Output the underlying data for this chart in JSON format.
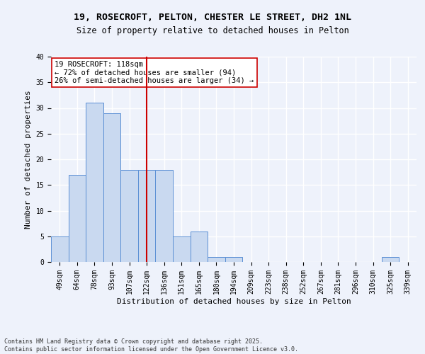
{
  "title_line1": "19, ROSECROFT, PELTON, CHESTER LE STREET, DH2 1NL",
  "title_line2": "Size of property relative to detached houses in Pelton",
  "xlabel": "Distribution of detached houses by size in Pelton",
  "ylabel": "Number of detached properties",
  "categories": [
    "49sqm",
    "64sqm",
    "78sqm",
    "93sqm",
    "107sqm",
    "122sqm",
    "136sqm",
    "151sqm",
    "165sqm",
    "180sqm",
    "194sqm",
    "209sqm",
    "223sqm",
    "238sqm",
    "252sqm",
    "267sqm",
    "281sqm",
    "296sqm",
    "310sqm",
    "325sqm",
    "339sqm"
  ],
  "values": [
    5,
    17,
    31,
    29,
    18,
    18,
    18,
    5,
    6,
    1,
    1,
    0,
    0,
    0,
    0,
    0,
    0,
    0,
    0,
    1,
    0
  ],
  "bar_color": "#c9d9f0",
  "bar_edge_color": "#5b8fd4",
  "vline_x": 5,
  "vline_color": "#cc0000",
  "annotation_text": "19 ROSECROFT: 118sqm\n← 72% of detached houses are smaller (94)\n26% of semi-detached houses are larger (34) →",
  "annotation_fontsize": 7.5,
  "ylim": [
    0,
    40
  ],
  "yticks": [
    0,
    5,
    10,
    15,
    20,
    25,
    30,
    35,
    40
  ],
  "footnote": "Contains HM Land Registry data © Crown copyright and database right 2025.\nContains public sector information licensed under the Open Government Licence v3.0.",
  "bg_color": "#eef2fb",
  "grid_color": "#ffffff",
  "title_fontsize": 9.5,
  "subtitle_fontsize": 8.5,
  "xlabel_fontsize": 8,
  "ylabel_fontsize": 8,
  "tick_fontsize": 7,
  "footnote_fontsize": 6
}
